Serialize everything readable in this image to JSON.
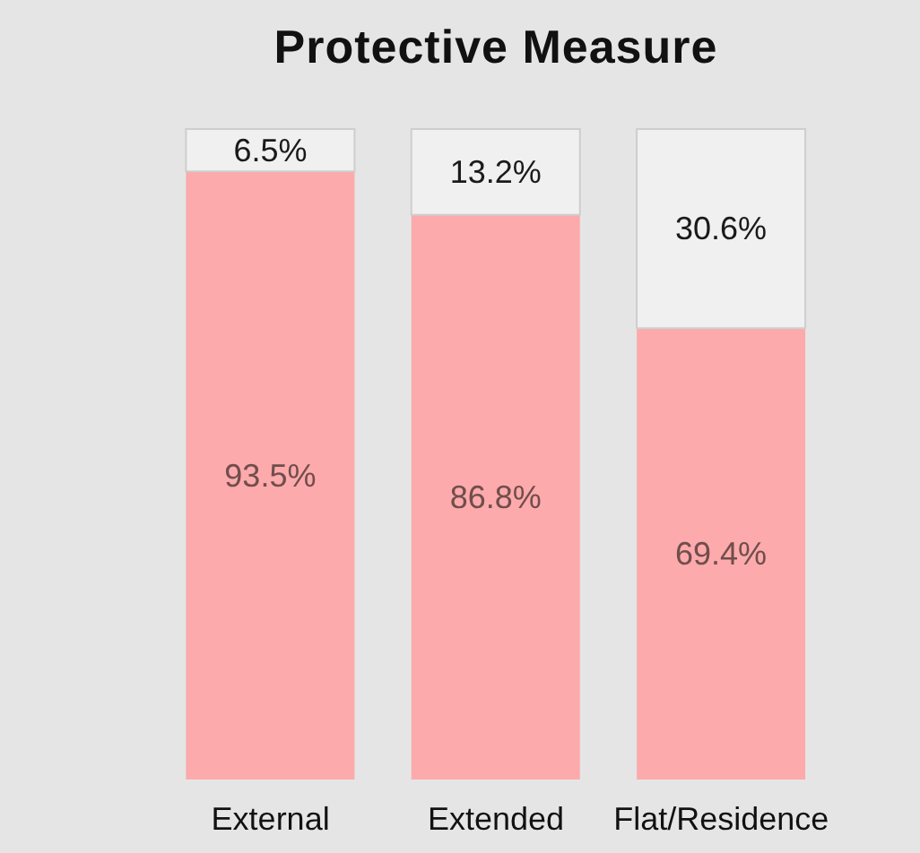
{
  "chart_data": {
    "type": "bar",
    "title": "Protective Measure",
    "categories": [
      "External",
      "Extended",
      "Flat/Residence"
    ],
    "stacked": true,
    "series": [
      {
        "color": "#fcaaab",
        "values": [
          93.5,
          86.8,
          69.4
        ],
        "value_labels": [
          "93.5%",
          "86.8%",
          "69.4%"
        ]
      },
      {
        "color": "#f0f0f0",
        "values": [
          6.5,
          13.2,
          30.6
        ],
        "value_labels": [
          "6.5%",
          "13.2%",
          "30.6%"
        ]
      }
    ]
  }
}
